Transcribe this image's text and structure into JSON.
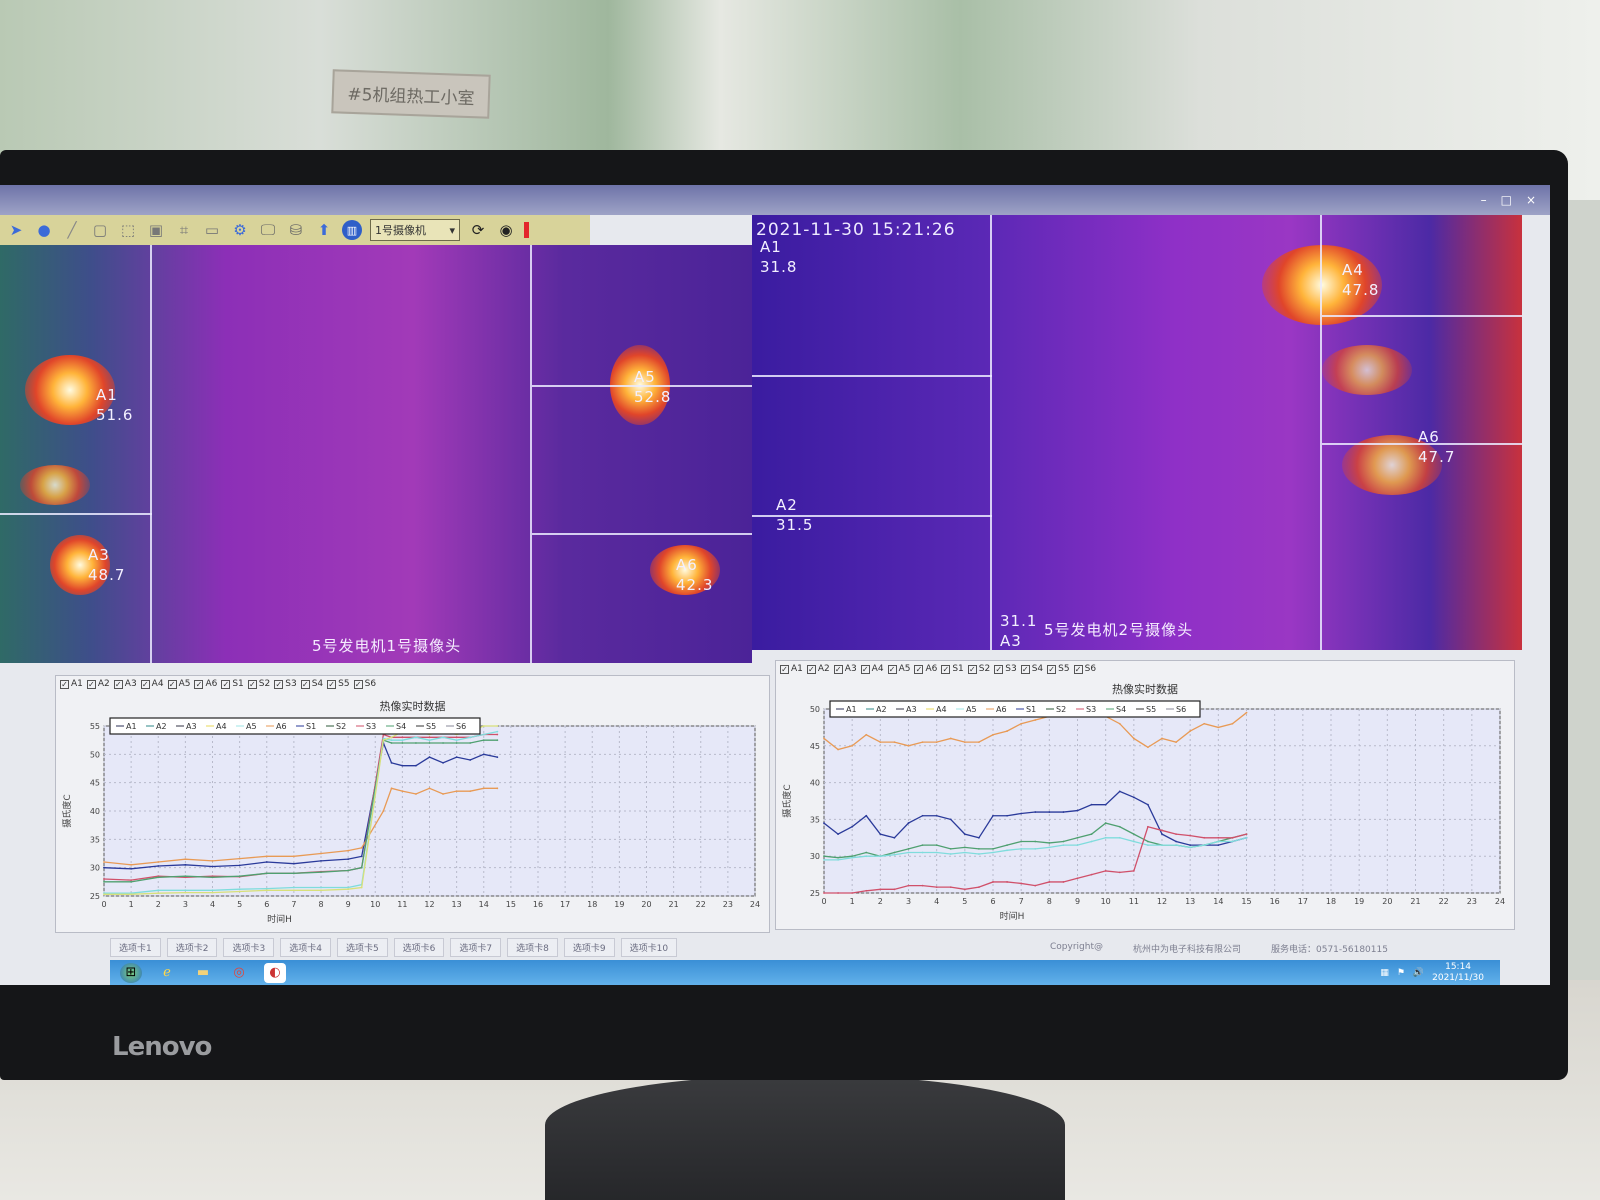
{
  "room": {
    "sign_text": "#5机组热工小室",
    "monitor_brand": "Lenovo"
  },
  "window": {
    "title_buttons": [
      "–",
      "□",
      "×"
    ]
  },
  "toolbar": {
    "icons": [
      "pointer-icon",
      "circle-tool-icon",
      "line-tool-icon",
      "rect-tool-icon",
      "zoom-icon",
      "frame-icon",
      "crop-icon",
      "window-icon",
      "gear-icon",
      "monitor-icon",
      "database-icon",
      "upload-icon",
      "chart-icon"
    ],
    "camera_select": "1号摄像机",
    "refresh_icon": "refresh-icon",
    "capture_icon": "camera-icon"
  },
  "cameras": [
    {
      "caption": "5号发电机1号摄像头",
      "areas": [
        {
          "name": "A1",
          "value": "51.6"
        },
        {
          "name": "A3",
          "value": "48.7"
        },
        {
          "name": "A5",
          "value": "52.8"
        },
        {
          "name": "A6",
          "value": "42.3"
        }
      ]
    },
    {
      "caption": "5号发电机2号摄像头",
      "timestamp": "2021-11-30  15:21:26",
      "areas": [
        {
          "name": "A1",
          "value": "31.8"
        },
        {
          "name": "A2",
          "value": "31.5"
        },
        {
          "name": "A3",
          "value": "31.1"
        },
        {
          "name": "A4",
          "value": "47.8"
        },
        {
          "name": "A6",
          "value": "47.7"
        }
      ]
    }
  ],
  "checkbox_labels": [
    "A1",
    "A2",
    "A3",
    "A4",
    "A5",
    "A6",
    "S1",
    "S2",
    "S3",
    "S4",
    "S5",
    "S6"
  ],
  "legend_colors": {
    "A1": "#2b2f55",
    "A2": "#2f8a8a",
    "A3": "#333344",
    "A4": "#e8d85a",
    "A5": "#9fe6e6",
    "A6": "#e89a55",
    "S1": "#2a3a9a",
    "S2": "#2e5a3a",
    "S3": "#d0506a",
    "S4": "#4fa070",
    "S5": "#333333",
    "S6": "#888899"
  },
  "chart_data": [
    {
      "type": "line",
      "title": "热像实时数据",
      "xlabel": "时间H",
      "ylabel": "摄氏度C",
      "xlim": [
        0,
        24
      ],
      "ylim": [
        25,
        55
      ],
      "xticks": [
        0,
        1,
        2,
        3,
        4,
        5,
        6,
        7,
        8,
        9,
        10,
        11,
        12,
        13,
        14,
        15,
        16,
        17,
        18,
        19,
        20,
        21,
        22,
        23,
        24
      ],
      "yticks": [
        25,
        30,
        35,
        40,
        45,
        50,
        55
      ],
      "grid": true,
      "legend": [
        "A1",
        "A2",
        "A3",
        "A4",
        "A5",
        "A6",
        "S1",
        "S2",
        "S3",
        "S4",
        "S5",
        "S6"
      ],
      "legend_position": "top",
      "x": [
        0,
        1,
        2,
        3,
        4,
        5,
        6,
        7,
        8,
        9,
        9.5,
        10.3,
        10.6,
        11,
        11.5,
        12,
        12.5,
        13,
        13.5,
        14,
        14.5
      ],
      "series": [
        {
          "name": "S1",
          "color": "#2a3a9a",
          "values": [
            30,
            29.8,
            30.3,
            30.5,
            30.2,
            30.4,
            31,
            30.7,
            31.2,
            31.5,
            32,
            52,
            48.5,
            48,
            48,
            49.5,
            48.5,
            49.5,
            49,
            50,
            49.5
          ]
        },
        {
          "name": "A6",
          "color": "#e89a55",
          "values": [
            31,
            30.5,
            31,
            31.5,
            31.2,
            31.6,
            32,
            32,
            32.5,
            33,
            33.5,
            40,
            44,
            43.5,
            43,
            44,
            43,
            43.5,
            43.5,
            44,
            44
          ]
        },
        {
          "name": "S3",
          "color": "#d0506a",
          "values": [
            28,
            27.8,
            28.5,
            28.3,
            28.5,
            28.4,
            29,
            29,
            29.3,
            29.5,
            30,
            53.5,
            53,
            53,
            53,
            53,
            53,
            53,
            53,
            53.5,
            53.5
          ]
        },
        {
          "name": "S4",
          "color": "#4fa070",
          "values": [
            27.5,
            27.5,
            28.3,
            28.5,
            28.3,
            28.5,
            29,
            29,
            29.2,
            29.5,
            30,
            52.5,
            52,
            52,
            52,
            52,
            52,
            52,
            52,
            52.5,
            52.5
          ]
        },
        {
          "name": "A5",
          "color": "#7fdcdc",
          "values": [
            25.5,
            25.5,
            26,
            26,
            26,
            26.2,
            26.3,
            26.5,
            26.5,
            26.5,
            27,
            52.8,
            52.5,
            52.5,
            53,
            52.5,
            53,
            52.5,
            53,
            53.5,
            54
          ]
        },
        {
          "name": "A4",
          "color": "#d8e07a",
          "values": [
            25.3,
            25.3,
            25.5,
            25.6,
            25.6,
            25.8,
            26,
            26,
            26,
            26.2,
            26.5,
            52.5,
            53,
            54,
            54,
            53.5,
            54,
            53.5,
            54,
            55,
            55
          ]
        }
      ]
    },
    {
      "type": "line",
      "title": "热像实时数据",
      "xlabel": "时间H",
      "ylabel": "摄氏度C",
      "xlim": [
        0,
        24
      ],
      "ylim": [
        25,
        50
      ],
      "xticks": [
        0,
        1,
        2,
        3,
        4,
        5,
        6,
        7,
        8,
        9,
        10,
        11,
        12,
        13,
        14,
        15,
        16,
        17,
        18,
        19,
        20,
        21,
        22,
        23,
        24
      ],
      "yticks": [
        25,
        30,
        35,
        40,
        45,
        50
      ],
      "grid": true,
      "legend": [
        "A1",
        "A2",
        "A3",
        "A4",
        "A5",
        "A6",
        "S1",
        "S2",
        "S3",
        "S4",
        "S5",
        "S6"
      ],
      "legend_position": "top",
      "x": [
        0,
        0.5,
        1,
        1.5,
        2,
        2.5,
        3,
        3.5,
        4,
        4.5,
        5,
        5.5,
        6,
        6.5,
        7,
        7.5,
        8,
        8.5,
        9,
        9.5,
        10,
        10.5,
        11,
        11.5,
        12,
        12.5,
        13,
        13.5,
        14,
        14.5,
        15
      ],
      "series": [
        {
          "name": "A6",
          "color": "#e89a55",
          "values": [
            46,
            44.5,
            45,
            46.5,
            45.5,
            45.5,
            45,
            45.5,
            45.5,
            46,
            45.5,
            45.5,
            46.5,
            47,
            48,
            48.5,
            49,
            49.5,
            50,
            49.5,
            49,
            48,
            46,
            44.8,
            46,
            45.5,
            47,
            48,
            47.5,
            48,
            49.5
          ]
        },
        {
          "name": "S1",
          "color": "#2a3a9a",
          "values": [
            34.5,
            33,
            34,
            35.5,
            33,
            32.5,
            34.5,
            35.5,
            35.5,
            35,
            33,
            32.5,
            35.5,
            35.5,
            35.8,
            36,
            36,
            36,
            36.2,
            37,
            37,
            38.8,
            38,
            37,
            33,
            32,
            31.5,
            31.5,
            31.5,
            32,
            32.5
          ]
        },
        {
          "name": "S4",
          "color": "#4fa070",
          "values": [
            30,
            29.8,
            30,
            30.5,
            30,
            30.5,
            31,
            31.5,
            31.5,
            31,
            31.2,
            31,
            31,
            31.5,
            32,
            32,
            31.8,
            32,
            32.5,
            33,
            34.5,
            34,
            33,
            32,
            31.5,
            31.5,
            31.2,
            31.5,
            32,
            32.5,
            33
          ]
        },
        {
          "name": "A5",
          "color": "#7fdcdc",
          "values": [
            29.5,
            29.5,
            29.8,
            30,
            30,
            30.2,
            30.5,
            30.5,
            30.5,
            30.3,
            30.5,
            30.3,
            30.5,
            30.8,
            31,
            31,
            31.2,
            31.5,
            31.5,
            32,
            32.5,
            32.5,
            32,
            31.5,
            31.5,
            31.5,
            31.2,
            31.5,
            32,
            32,
            32.5
          ]
        },
        {
          "name": "S3",
          "color": "#d0506a",
          "values": [
            25,
            24.8,
            25,
            25.3,
            25.5,
            25.5,
            26,
            26,
            25.8,
            25.8,
            25.5,
            25.8,
            26.5,
            26.5,
            26.3,
            26,
            26.5,
            26.5,
            27,
            27.5,
            28,
            27.8,
            28,
            34,
            33.5,
            33,
            32.8,
            32.5,
            32.5,
            32.5,
            33
          ]
        }
      ]
    }
  ],
  "tabs": [
    "选项卡1",
    "选项卡2",
    "选项卡3",
    "选项卡4",
    "选项卡5",
    "选项卡6",
    "选项卡7",
    "选项卡8",
    "选项卡9",
    "选项卡10"
  ],
  "status": {
    "copyright": "Copyright@",
    "company": "杭州中为电子科技有限公司",
    "phone": "服务电话：0571-56180115"
  },
  "taskbar": {
    "time": "15:14",
    "date": "2021/11/30"
  }
}
